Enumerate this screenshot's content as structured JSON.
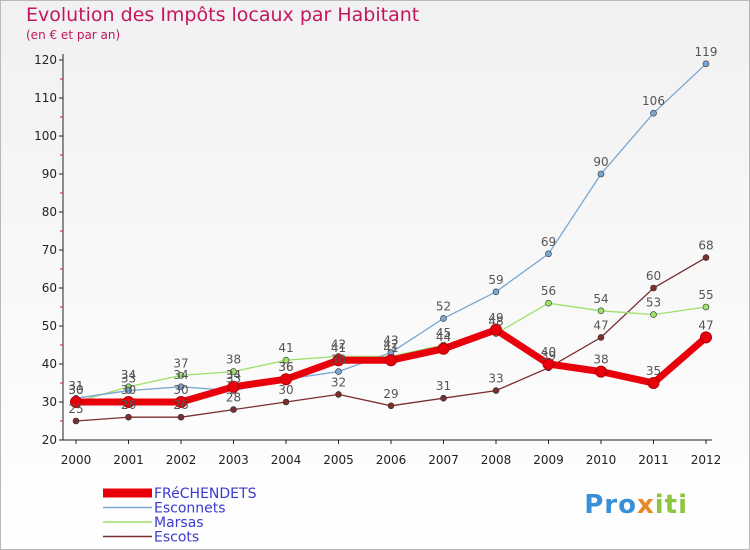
{
  "chart_data": {
    "type": "line",
    "title": "Evolution des Impôts locaux par Habitant",
    "subtitle": "(en € et par an)",
    "xlabel": "",
    "ylabel": "",
    "ylim": [
      20,
      120
    ],
    "yticks": [
      20,
      30,
      40,
      50,
      60,
      70,
      80,
      90,
      100,
      110,
      120
    ],
    "categories": [
      "2000",
      "2001",
      "2002",
      "2003",
      "2004",
      "2005",
      "2006",
      "2007",
      "2008",
      "2009",
      "2010",
      "2011",
      "2012"
    ],
    "grid": false,
    "legend_position": "bottom-left",
    "series": [
      {
        "name": "FRéCHENDETS",
        "color": "#e8000b",
        "values": [
          30,
          30,
          30,
          34,
          36,
          41,
          41,
          44,
          49,
          40,
          38,
          35,
          47
        ]
      },
      {
        "name": "Esconnets",
        "color": "#79a6d2",
        "values": [
          31,
          33,
          34,
          33,
          36,
          38,
          43,
          52,
          59,
          69,
          90,
          106,
          119
        ]
      },
      {
        "name": "Marsas",
        "color": "#9ee06b",
        "values": [
          30,
          34,
          37,
          38,
          41,
          42,
          42,
          45,
          48,
          56,
          54,
          53,
          55
        ]
      },
      {
        "name": "Escots",
        "color": "#7a2e2e",
        "values": [
          25,
          26,
          26,
          28,
          30,
          32,
          29,
          31,
          33,
          39,
          47,
          60,
          68
        ]
      }
    ]
  },
  "branding": {
    "logo_text": "Proxiti"
  }
}
